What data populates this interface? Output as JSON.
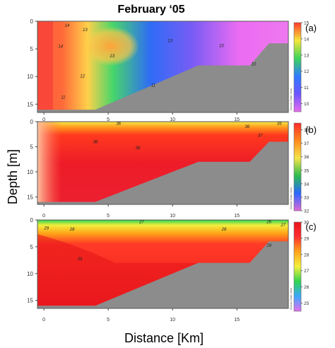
{
  "figure": {
    "title": "February ‘05",
    "ylabel": "Depth [m]",
    "xlabel": "Distance [Km]"
  },
  "chart_data": [
    {
      "type": "heatmap",
      "panel_label": "(a)",
      "xlim": [
        -0.5,
        19
      ],
      "ylim": [
        16.5,
        0
      ],
      "x_ticks": [
        "0",
        "5",
        "10",
        "15"
      ],
      "y_ticks": [
        "0",
        "5",
        "10",
        "15"
      ],
      "colorbar": {
        "label": "Ocean Data View",
        "min": 9.5,
        "max": 15,
        "ticks": [
          "15",
          "14",
          "13",
          "12",
          "11",
          "10"
        ]
      },
      "contour_labels": [
        {
          "text": "14",
          "x": 1.8,
          "y": 1.0
        },
        {
          "text": "13",
          "x": 3.2,
          "y": 1.8
        },
        {
          "text": "14",
          "x": 1.3,
          "y": 4.8
        },
        {
          "text": "13",
          "x": 5.3,
          "y": 6.5
        },
        {
          "text": "13",
          "x": 9.8,
          "y": 3.8
        },
        {
          "text": "12",
          "x": 3.0,
          "y": 10.2
        },
        {
          "text": "11",
          "x": 8.5,
          "y": 11.8
        },
        {
          "text": "10",
          "x": 13.8,
          "y": 4.7
        },
        {
          "text": "10",
          "x": 16.3,
          "y": 8.0
        },
        {
          "text": "11",
          "x": 1.5,
          "y": 14.0
        }
      ]
    },
    {
      "type": "heatmap",
      "panel_label": "(b)",
      "xlim": [
        -0.5,
        19
      ],
      "ylim": [
        16.5,
        0
      ],
      "x_ticks": [
        "0",
        "5",
        "10",
        "15"
      ],
      "y_ticks": [
        "0",
        "5",
        "10",
        "15"
      ],
      "colorbar": {
        "label": "Ocean Data View",
        "min": 32,
        "max": 38.5,
        "ticks": [
          "38",
          "37",
          "36",
          "35",
          "34",
          "33",
          "32"
        ]
      },
      "contour_labels": [
        {
          "text": "36",
          "x": 5.8,
          "y": 0.6
        },
        {
          "text": "36",
          "x": 15.8,
          "y": 1.3
        },
        {
          "text": "35",
          "x": 18.3,
          "y": 0.6
        },
        {
          "text": "37",
          "x": 16.8,
          "y": 3.0
        },
        {
          "text": "38",
          "x": 4.0,
          "y": 4.3
        },
        {
          "text": "38",
          "x": 7.3,
          "y": 5.5
        }
      ]
    },
    {
      "type": "heatmap",
      "panel_label": "(c)",
      "xlim": [
        -0.5,
        19
      ],
      "ylim": [
        16.5,
        0
      ],
      "x_ticks": [
        "0",
        "5",
        "10",
        "15"
      ],
      "y_ticks": [
        "0",
        "5",
        "10",
        "15"
      ],
      "colorbar": {
        "label": "Ocean Data View",
        "min": 24.5,
        "max": 30,
        "ticks": [
          "30",
          "29",
          "28",
          "27",
          "26",
          "25"
        ]
      },
      "contour_labels": [
        {
          "text": "27",
          "x": 7.6,
          "y": 0.6
        },
        {
          "text": "26",
          "x": 17.5,
          "y": 0.6
        },
        {
          "text": "27",
          "x": 18.6,
          "y": 1.2
        },
        {
          "text": "28",
          "x": 2.2,
          "y": 2.0
        },
        {
          "text": "28",
          "x": 14.0,
          "y": 2.0
        },
        {
          "text": "29",
          "x": 0.2,
          "y": 1.8
        },
        {
          "text": "29",
          "x": 2.8,
          "y": 7.5
        },
        {
          "text": "29",
          "x": 17.5,
          "y": 5.0
        }
      ]
    }
  ]
}
